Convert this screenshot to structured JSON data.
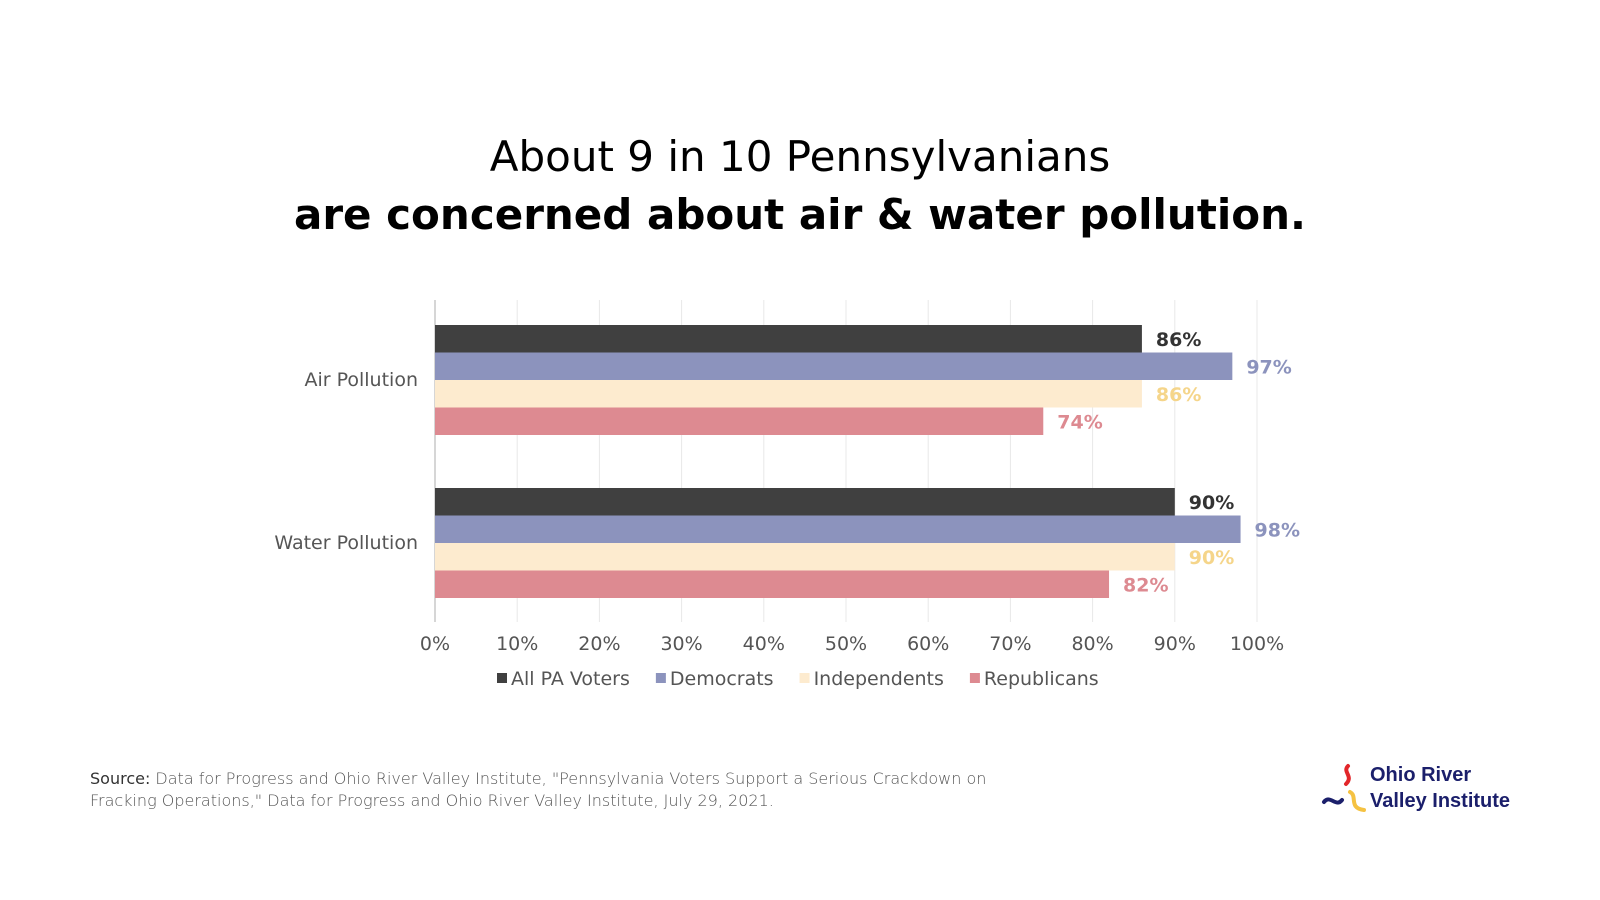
{
  "title": {
    "line1": "About 9 in 10 Pennsylvanians",
    "line2": "are concerned about air & water pollution."
  },
  "chart_data": {
    "type": "bar",
    "orientation": "horizontal",
    "categories": [
      "Air Pollution",
      "Water Pollution"
    ],
    "series": [
      {
        "name": "All PA Voters",
        "color": "#404040",
        "label_color": "#333333",
        "values": [
          86,
          90
        ],
        "labels": [
          "86%",
          "90%"
        ]
      },
      {
        "name": "Democrats",
        "color": "#8c93bd",
        "label_color": "#8c93bd",
        "values": [
          97,
          98
        ],
        "labels": [
          "97%",
          "98%"
        ]
      },
      {
        "name": "Independents",
        "color": "#fdebcf",
        "label_color": "#f5d58a",
        "values": [
          86,
          90
        ],
        "labels": [
          "86%",
          "90%"
        ]
      },
      {
        "name": "Republicans",
        "color": "#dd8a91",
        "label_color": "#dd8a91",
        "values": [
          74,
          82
        ],
        "labels": [
          "74%",
          "82%"
        ]
      }
    ],
    "xlim": [
      0,
      100
    ],
    "xticks": [
      "0%",
      "10%",
      "20%",
      "30%",
      "40%",
      "50%",
      "60%",
      "70%",
      "80%",
      "90%",
      "100%"
    ],
    "grid": true,
    "legend": "bottom"
  },
  "source": {
    "label": "Source:",
    "text": " Data for Progress and Ohio River Valley Institute, \"Pennsylvania Voters Support a Serious Crackdown on Fracking Operations,\" Data for Progress and Ohio River Valley Institute, July 29, 2021."
  },
  "logo": {
    "line1": "Ohio River",
    "line2": "Valley Institute",
    "colors": {
      "red": "#e2262a",
      "navy": "#1b1f6b",
      "yellow": "#f5c242"
    }
  }
}
